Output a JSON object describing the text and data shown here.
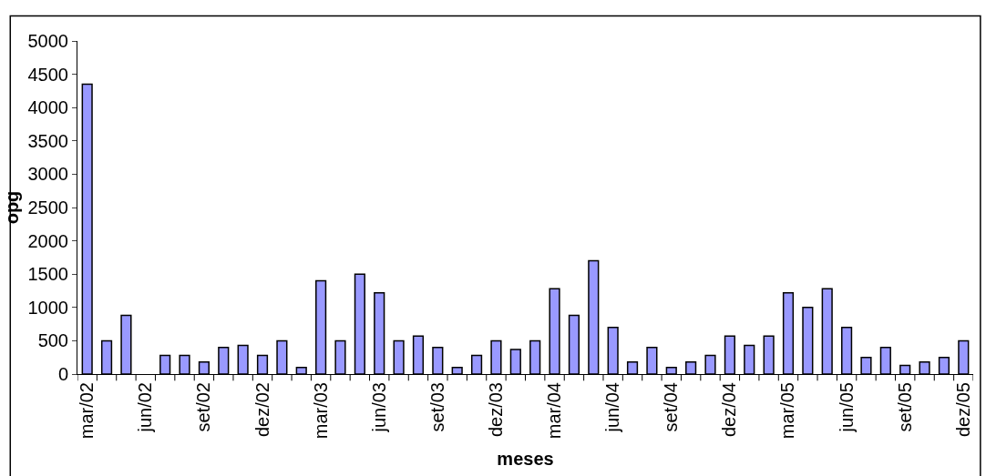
{
  "chart_data": {
    "type": "bar",
    "xlabel": "meses",
    "ylabel": "opg",
    "categories": [
      "mar/02",
      null,
      null,
      "jun/02",
      null,
      null,
      "set/02",
      null,
      null,
      "dez/02",
      null,
      null,
      "mar/03",
      null,
      null,
      "jun/03",
      null,
      null,
      "set/03",
      null,
      null,
      "dez/03",
      null,
      null,
      "mar/04",
      null,
      null,
      "jun/04",
      null,
      null,
      "set/04",
      null,
      null,
      "dez/04",
      null,
      null,
      "mar/05",
      null,
      null,
      "jun/05",
      null,
      null,
      "set/05",
      null,
      null,
      "dez/05"
    ],
    "values": [
      4350,
      500,
      880,
      0,
      280,
      280,
      180,
      400,
      430,
      280,
      500,
      100,
      1400,
      500,
      1500,
      1220,
      500,
      570,
      400,
      100,
      280,
      500,
      370,
      500,
      1280,
      880,
      1700,
      700,
      180,
      400,
      100,
      180,
      280,
      570,
      430,
      570,
      1220,
      1000,
      1280,
      700,
      250,
      400,
      130,
      180,
      250,
      500
    ],
    "color": "#9999ff",
    "ylim": [
      0,
      5000
    ],
    "yticks": [
      0,
      500,
      1000,
      1500,
      2000,
      2500,
      3000,
      3500,
      4000,
      4500,
      5000
    ]
  }
}
